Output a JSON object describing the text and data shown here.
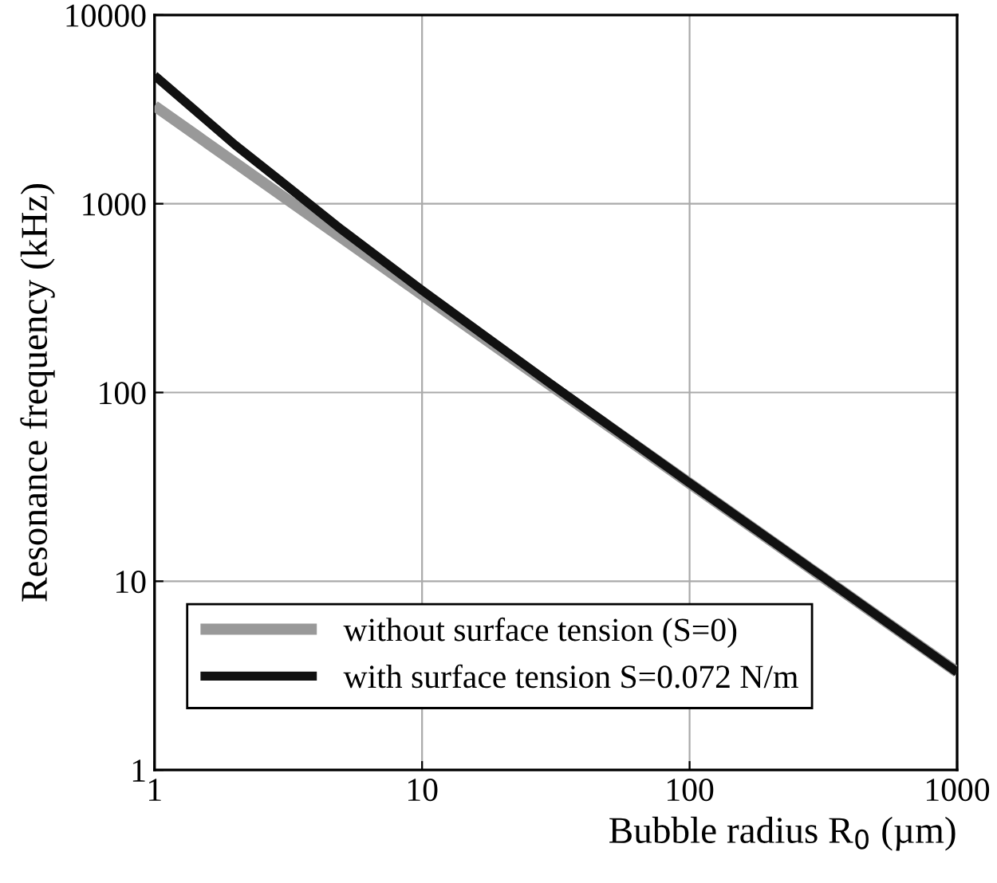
{
  "chart_data": {
    "type": "line",
    "xlabel": "Bubble radius R$_{0}$ (µm)",
    "ylabel": "Resonance frequency (kHz)",
    "x": [
      1,
      2,
      3,
      5,
      10,
      30,
      100,
      300,
      1000
    ],
    "series": [
      {
        "name": "without surface tension (S=0)",
        "color": "#999999",
        "values": [
          3300,
          1650,
          1100,
          660,
          330,
          110,
          33,
          11,
          3.3
        ]
      },
      {
        "name": "with surface tension S=0.072 N/m",
        "color": "#111111",
        "values": [
          4780,
          2050,
          1300,
          730,
          348,
          112,
          33.2,
          11.05,
          3.3
        ]
      }
    ],
    "log": "xy",
    "xlim": [
      1,
      1000
    ],
    "ylim": [
      1,
      10000
    ],
    "xticks": [
      1,
      10,
      100,
      1000
    ],
    "yticks": [
      1,
      10,
      100,
      1000,
      10000
    ],
    "grid": true,
    "legend": "bottom left",
    "marker": "none",
    "line_style": "solid"
  }
}
